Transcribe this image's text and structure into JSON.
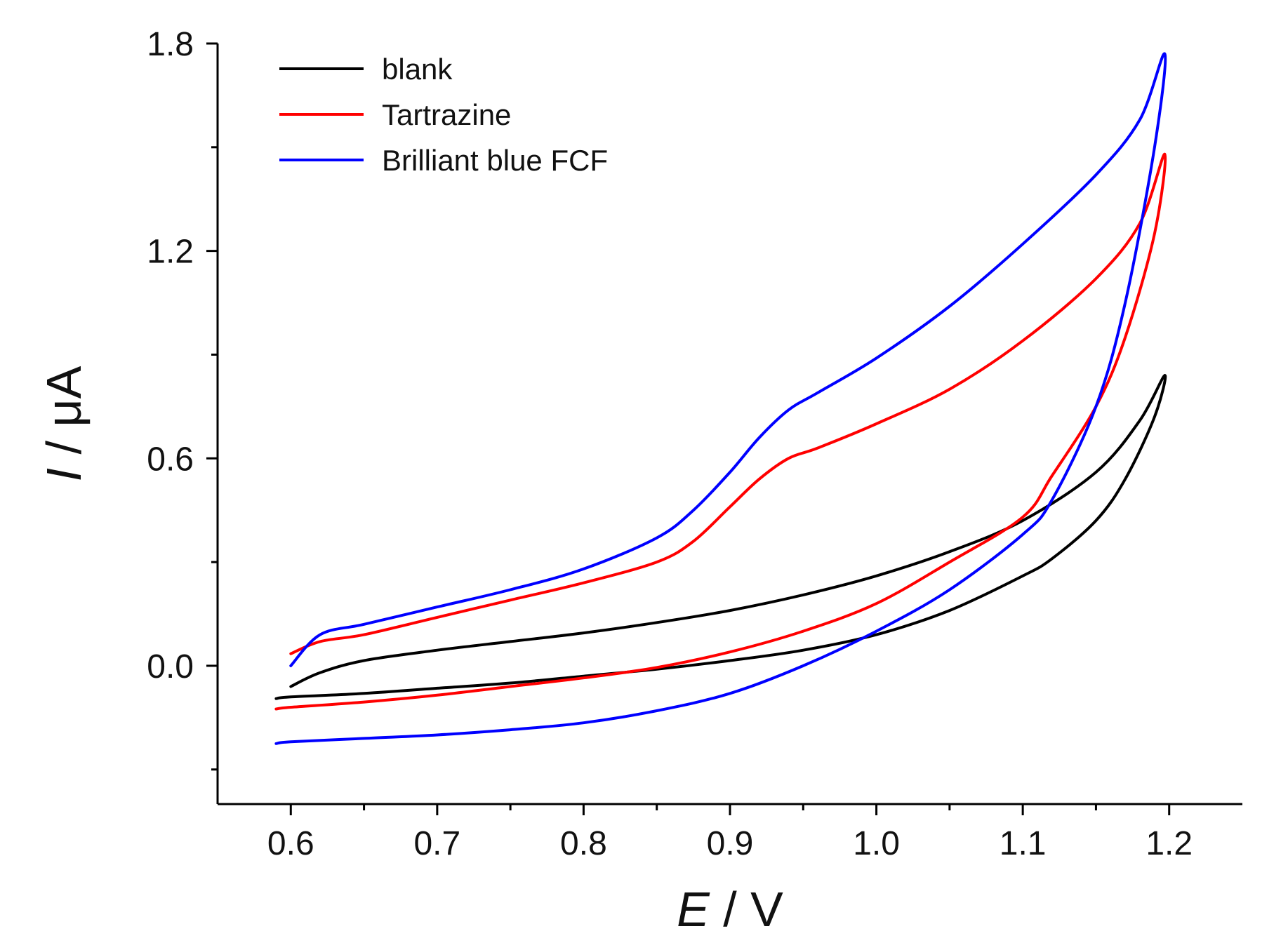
{
  "chart_data": {
    "type": "line",
    "title": "",
    "xlabel_var": "E",
    "xlabel_unit": " / V",
    "ylabel_var": "I",
    "ylabel_unit": " / μA",
    "xlim": [
      0.55,
      1.25
    ],
    "ylim": [
      -0.4,
      1.8
    ],
    "x_ticks": [
      0.6,
      0.7,
      0.8,
      0.9,
      1.0,
      1.1,
      1.2
    ],
    "x_tick_labels": [
      "0.6",
      "0.7",
      "0.8",
      "0.9",
      "1.0",
      "1.1",
      "1.2"
    ],
    "x_minor_ticks": [
      0.65,
      0.75,
      0.85,
      0.95,
      1.05,
      1.15
    ],
    "y_ticks": [
      0.0,
      0.6,
      1.2,
      1.8
    ],
    "y_tick_labels": [
      "0.0",
      "0.6",
      "1.2",
      "1.8"
    ],
    "y_minor_ticks": [
      -0.3,
      0.3,
      0.9,
      1.5
    ],
    "grid": false,
    "legend_position": "top-left",
    "series": [
      {
        "name": "blank",
        "color": "#000000",
        "x": [
          0.6,
          0.62,
          0.65,
          0.7,
          0.75,
          0.8,
          0.85,
          0.9,
          0.95,
          1.0,
          1.05,
          1.1,
          1.15,
          1.18,
          1.197,
          1.19,
          1.17,
          1.15,
          1.12,
          1.1,
          1.05,
          1.0,
          0.95,
          0.9,
          0.85,
          0.8,
          0.75,
          0.7,
          0.65,
          0.6,
          0.59
        ],
        "y": [
          -0.06,
          -0.02,
          0.015,
          0.045,
          0.07,
          0.095,
          0.125,
          0.16,
          0.205,
          0.26,
          0.33,
          0.42,
          0.56,
          0.71,
          0.84,
          0.72,
          0.54,
          0.42,
          0.31,
          0.26,
          0.16,
          0.09,
          0.045,
          0.015,
          -0.01,
          -0.03,
          -0.05,
          -0.065,
          -0.08,
          -0.09,
          -0.095
        ]
      },
      {
        "name": "Tartrazine",
        "color": "#ff0000",
        "x": [
          0.6,
          0.62,
          0.65,
          0.7,
          0.75,
          0.8,
          0.85,
          0.875,
          0.9,
          0.92,
          0.94,
          0.96,
          1.0,
          1.05,
          1.1,
          1.15,
          1.18,
          1.197,
          1.19,
          1.17,
          1.15,
          1.12,
          1.1,
          1.05,
          1.0,
          0.95,
          0.9,
          0.85,
          0.8,
          0.75,
          0.7,
          0.65,
          0.6,
          0.59
        ],
        "y": [
          0.035,
          0.07,
          0.09,
          0.14,
          0.19,
          0.24,
          0.3,
          0.36,
          0.46,
          0.54,
          0.6,
          0.63,
          0.7,
          0.8,
          0.94,
          1.12,
          1.28,
          1.48,
          1.25,
          0.95,
          0.75,
          0.55,
          0.43,
          0.3,
          0.18,
          0.1,
          0.04,
          -0.005,
          -0.035,
          -0.06,
          -0.085,
          -0.105,
          -0.12,
          -0.125
        ]
      },
      {
        "name": "Brilliant blue FCF",
        "color": "#0000ff",
        "x": [
          0.6,
          0.62,
          0.65,
          0.7,
          0.75,
          0.8,
          0.85,
          0.875,
          0.9,
          0.92,
          0.94,
          0.96,
          1.0,
          1.05,
          1.1,
          1.15,
          1.18,
          1.197,
          1.19,
          1.17,
          1.15,
          1.12,
          1.1,
          1.05,
          1.0,
          0.95,
          0.9,
          0.85,
          0.8,
          0.75,
          0.7,
          0.65,
          0.6,
          0.59
        ],
        "y": [
          0.0,
          0.09,
          0.12,
          0.17,
          0.22,
          0.28,
          0.37,
          0.45,
          0.56,
          0.66,
          0.74,
          0.79,
          0.89,
          1.04,
          1.22,
          1.42,
          1.58,
          1.77,
          1.5,
          1.05,
          0.75,
          0.48,
          0.38,
          0.22,
          0.1,
          0.0,
          -0.08,
          -0.13,
          -0.165,
          -0.185,
          -0.2,
          -0.21,
          -0.22,
          -0.225
        ]
      }
    ]
  }
}
